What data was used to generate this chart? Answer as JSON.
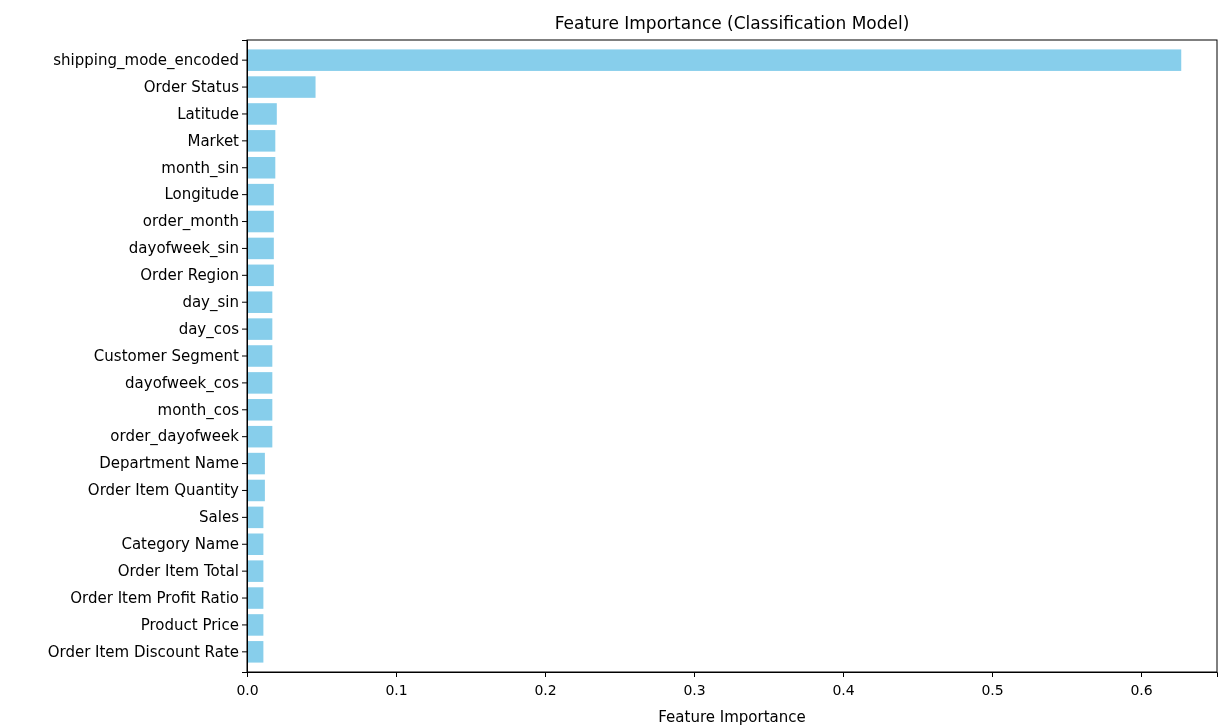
{
  "chart_data": {
    "type": "bar",
    "orientation": "horizontal",
    "title": "Feature Importance (Classification Model)",
    "xlabel": "Feature Importance",
    "categories": [
      "shipping_mode_encoded",
      "Order Status",
      "Latitude",
      "Market",
      "month_sin",
      "Longitude",
      "order_month",
      "dayofweek_sin",
      "Order Region",
      "day_sin",
      "day_cos",
      "Customer Segment",
      "dayofweek_cos",
      "month_cos",
      "order_dayofweek",
      "Department Name",
      "Order Item Quantity",
      "Sales",
      "Category Name",
      "Order Item Total",
      "Order Item Profit Ratio",
      "Product Price",
      "Order Item Discount Rate"
    ],
    "values": [
      0.627,
      0.046,
      0.02,
      0.019,
      0.019,
      0.018,
      0.018,
      0.018,
      0.018,
      0.017,
      0.017,
      0.017,
      0.017,
      0.017,
      0.017,
      0.012,
      0.012,
      0.011,
      0.011,
      0.011,
      0.011,
      0.011,
      0.011
    ],
    "color": "#87ceeb",
    "xlim": [
      0,
      0.651
    ],
    "xticks": [
      {
        "value": 0,
        "label": "0.0"
      },
      0.1,
      0.2,
      0.3,
      0.4,
      0.5,
      0.6
    ],
    "grid": false
  }
}
